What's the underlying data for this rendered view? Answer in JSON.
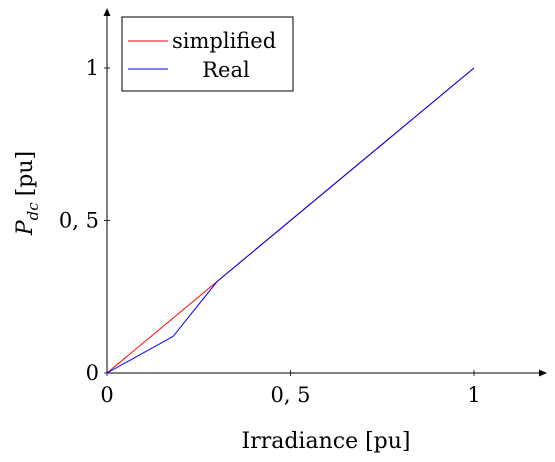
{
  "chart_data": {
    "type": "line",
    "title": "",
    "xlabel": "Irradiance [pu]",
    "ylabel": "P",
    "ylabel_subscript": "dc",
    "ylabel_unit": "[pu]",
    "xlim": [
      0,
      1.2
    ],
    "ylim": [
      0,
      1.2
    ],
    "xticks": [
      0,
      0.5,
      1
    ],
    "xtick_labels": [
      "0",
      "0, 5",
      "1"
    ],
    "yticks": [
      0,
      0.5,
      1
    ],
    "ytick_labels": [
      "0",
      "0, 5",
      "1"
    ],
    "grid": false,
    "legend_position": "top-left",
    "series": [
      {
        "name": "simplified",
        "color": "#ff0000",
        "x": [
          0,
          1
        ],
        "y": [
          0,
          1
        ]
      },
      {
        "name": "Real",
        "color": "#0000ff",
        "x": [
          0,
          0.18,
          0.3,
          1
        ],
        "y": [
          0,
          0.12,
          0.3,
          1
        ]
      }
    ]
  }
}
